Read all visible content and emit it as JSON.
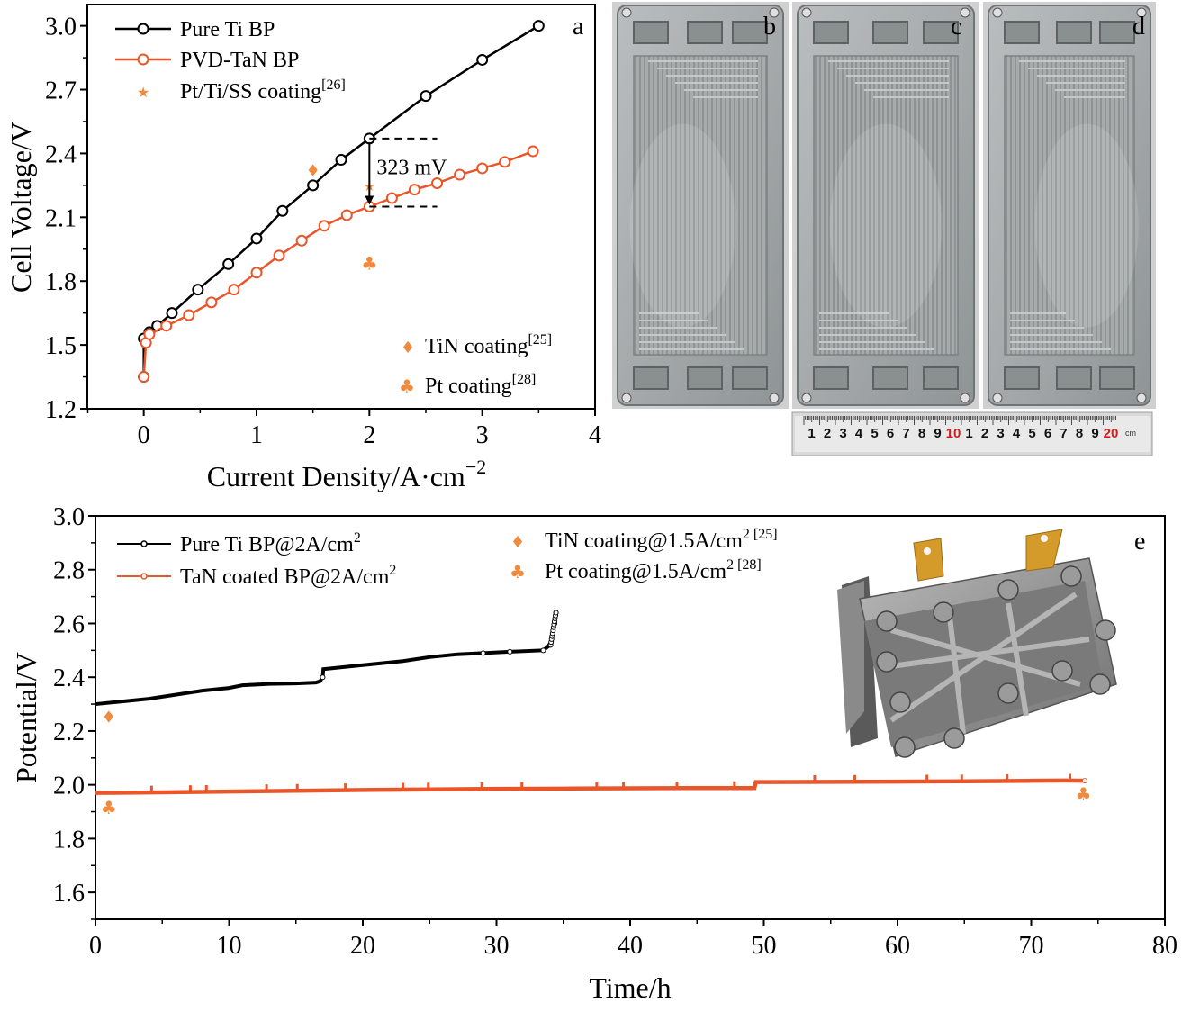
{
  "colors": {
    "black": "#000000",
    "orange": "#e8562a",
    "marker_orange": "#f08a3c",
    "plate": "#9ea3a4",
    "photo_bg": "#c8c8c8"
  },
  "panel_labels": {
    "a": "a",
    "b": "b",
    "c": "c",
    "d": "d",
    "e": "e"
  },
  "chart_data": [
    {
      "panel": "a",
      "type": "line",
      "xlabel": "Current Density/A·cm",
      "xlabel_sup": "−2",
      "ylabel": "Cell Voltage/V",
      "xlim": [
        -0.5,
        4
      ],
      "ylim": [
        1.2,
        3.1
      ],
      "xticks": [
        "0",
        "1",
        "2",
        "3",
        "4"
      ],
      "xtick_values": [
        0,
        1,
        2,
        3,
        4
      ],
      "yticks": [
        "1.2",
        "1.5",
        "1.8",
        "2.1",
        "2.4",
        "2.7",
        "3.0"
      ],
      "ytick_values": [
        1.2,
        1.5,
        1.8,
        2.1,
        2.4,
        2.7,
        3.0
      ],
      "series": [
        {
          "name": "Pure Ti BP",
          "color": "#000000",
          "x": [
            0.0,
            0.0,
            0.05,
            0.12,
            0.25,
            0.48,
            0.75,
            1.0,
            1.23,
            1.5,
            1.75,
            2.0,
            2.5,
            3.0,
            3.5
          ],
          "y": [
            1.35,
            1.53,
            1.56,
            1.59,
            1.65,
            1.76,
            1.88,
            2.0,
            2.13,
            2.25,
            2.37,
            2.47,
            2.67,
            2.84,
            3.0
          ]
        },
        {
          "name": "PVD-TaN BP",
          "color": "#e8562a",
          "x": [
            0.0,
            0.02,
            0.05,
            0.2,
            0.4,
            0.6,
            0.8,
            1.0,
            1.2,
            1.4,
            1.6,
            1.8,
            2.0,
            2.2,
            2.4,
            2.6,
            2.8,
            3.0,
            3.2,
            3.45
          ],
          "y": [
            1.35,
            1.51,
            1.55,
            1.59,
            1.64,
            1.7,
            1.76,
            1.84,
            1.92,
            1.99,
            2.06,
            2.11,
            2.15,
            2.19,
            2.23,
            2.26,
            2.3,
            2.33,
            2.36,
            2.41
          ]
        }
      ],
      "reference_points": [
        {
          "name": "Pt/Ti/SS coating",
          "ref": "[26]",
          "symbol": "★",
          "x": 2.0,
          "y": 2.25
        },
        {
          "name": "TiN coating",
          "ref": "[25]",
          "symbol": "♦",
          "x": 1.5,
          "y": 2.32
        },
        {
          "name": "Pt coating",
          "ref": "[28]",
          "symbol": "♣",
          "x": 2.0,
          "y": 1.88
        }
      ],
      "annotation": {
        "text": "323 mV",
        "x": 2.0,
        "y_top": 2.47,
        "y_bottom": 2.15
      }
    },
    {
      "panel": "e",
      "type": "line",
      "xlabel": "Time/h",
      "ylabel": "Potential/V",
      "xlim": [
        0,
        80
      ],
      "ylim": [
        1.5,
        3.0
      ],
      "xticks": [
        "0",
        "10",
        "20",
        "30",
        "40",
        "50",
        "60",
        "70",
        "80"
      ],
      "xtick_values": [
        0,
        10,
        20,
        30,
        40,
        50,
        60,
        70,
        80
      ],
      "yticks": [
        "1.6",
        "1.8",
        "2.0",
        "2.2",
        "2.4",
        "2.6",
        "2.8",
        "3.0"
      ],
      "ytick_values": [
        1.6,
        1.8,
        2.0,
        2.2,
        2.4,
        2.6,
        2.8,
        3.0
      ],
      "series": [
        {
          "name": "Pure Ti BP@2A/cm",
          "name_sup": "2",
          "color": "#000000",
          "x": [
            0,
            2,
            4,
            6,
            8,
            10,
            11,
            13,
            15,
            16.5,
            16.8,
            17.0,
            17.05,
            19,
            21,
            23,
            25,
            27,
            29,
            31,
            33.5,
            34.0,
            34.2,
            34.35,
            34.45
          ],
          "y": [
            2.3,
            2.31,
            2.32,
            2.335,
            2.35,
            2.36,
            2.37,
            2.375,
            2.377,
            2.38,
            2.385,
            2.4,
            2.43,
            2.44,
            2.45,
            2.46,
            2.475,
            2.485,
            2.49,
            2.495,
            2.5,
            2.52,
            2.56,
            2.6,
            2.64
          ]
        },
        {
          "name": "TaN coated BP@2A/cm",
          "name_sup": "2",
          "color": "#e8562a",
          "x": [
            0,
            5,
            10,
            15,
            20,
            25,
            30,
            35,
            40,
            45,
            49.3,
            49.4,
            55,
            60,
            65,
            70,
            72.5,
            74
          ],
          "y": [
            1.97,
            1.972,
            1.975,
            1.978,
            1.981,
            1.983,
            1.985,
            1.986,
            1.987,
            1.988,
            1.988,
            2.01,
            2.011,
            2.012,
            2.013,
            2.015,
            2.016,
            2.015
          ],
          "spikes_x": [
            4.2,
            7.1,
            8.3,
            12.8,
            15.1,
            18.7,
            23.0,
            24.9,
            28.9,
            31.9,
            37.5,
            39.5,
            43.5,
            47.8,
            53.8,
            56.8,
            62.2,
            64.8,
            68.2,
            72.9
          ],
          "spike_height": 0.025
        }
      ],
      "reference_points": [
        {
          "name": "TiN coating@1.5A/cm",
          "name_sup": "2 [25]",
          "symbol": "♦",
          "x": 1.0,
          "y": 2.255
        },
        {
          "name": "Pt coating@1.5A/cm",
          "name_sup": "2 [28]",
          "symbol": "♣",
          "x": 1.0,
          "y": 1.915
        },
        {
          "name": "Pt coating@1.5A/cm",
          "name_sup": "2 [28]",
          "symbol": "♣",
          "x": 73.9,
          "y": 1.965
        }
      ]
    }
  ],
  "ruler": {
    "numbers": [
      "1",
      "2",
      "3",
      "4",
      "5",
      "6",
      "7",
      "8",
      "9",
      "10",
      "1",
      "2",
      "3",
      "4",
      "5",
      "6",
      "7",
      "8",
      "9",
      "20"
    ],
    "red_indices": [
      9,
      19
    ],
    "unit": "cm"
  }
}
